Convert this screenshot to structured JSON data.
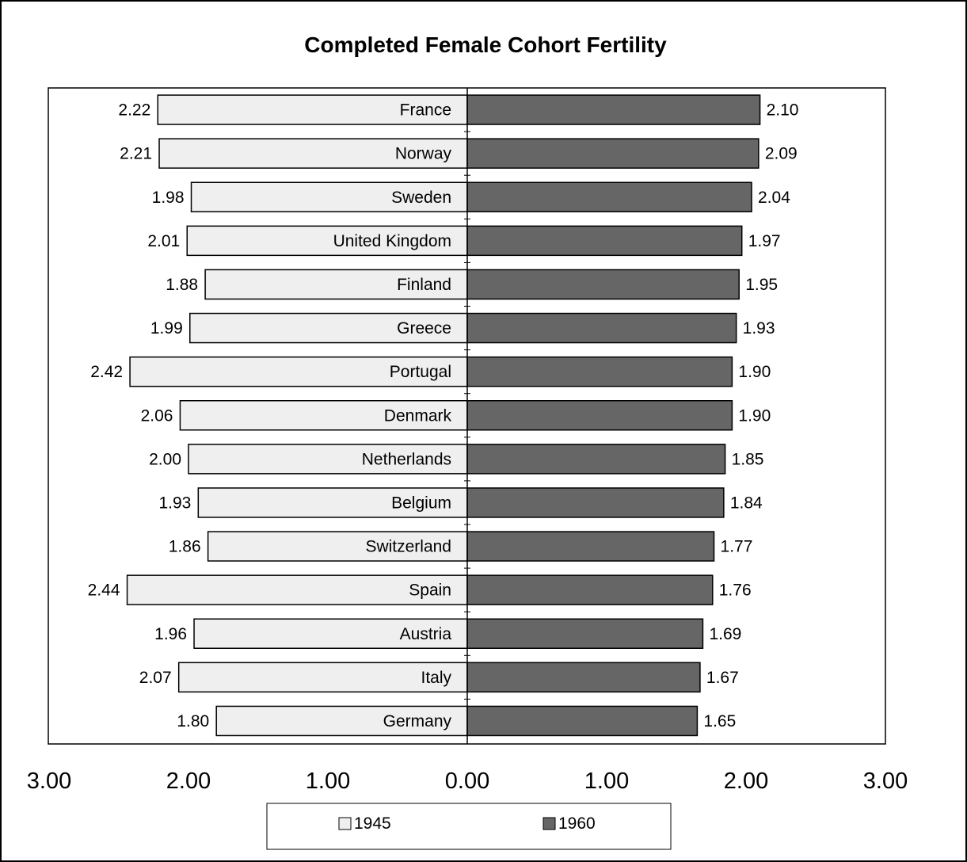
{
  "chart_data": {
    "type": "bar",
    "title": "Completed Female Cohort Fertility",
    "categories": [
      "France",
      "Norway",
      "Sweden",
      "United Kingdom",
      "Finland",
      "Greece",
      "Portugal",
      "Denmark",
      "Netherlands",
      "Belgium",
      "Switzerland",
      "Spain",
      "Austria",
      "Italy",
      "Germany"
    ],
    "series": [
      {
        "name": "1945",
        "values": [
          2.22,
          2.21,
          1.98,
          2.01,
          1.88,
          1.99,
          2.42,
          2.06,
          2.0,
          1.93,
          1.86,
          2.44,
          1.96,
          2.07,
          1.8
        ],
        "labels": [
          "2.22",
          "2.21",
          "1.98",
          "2.01",
          "1.88",
          "1.99",
          "2.42",
          "2.06",
          "2.00",
          "1.93",
          "1.86",
          "2.44",
          "1.96",
          "2.07",
          "1.80"
        ],
        "color": "#efefef",
        "side": "left"
      },
      {
        "name": "1960",
        "values": [
          2.1,
          2.09,
          2.04,
          1.97,
          1.95,
          1.93,
          1.9,
          1.9,
          1.85,
          1.84,
          1.77,
          1.76,
          1.69,
          1.67,
          1.65
        ],
        "labels": [
          "2.10",
          "2.09",
          "2.04",
          "1.97",
          "1.95",
          "1.93",
          "1.90",
          "1.90",
          "1.85",
          "1.84",
          "1.77",
          "1.76",
          "1.69",
          "1.67",
          "1.65"
        ],
        "color": "#666666",
        "side": "right"
      }
    ],
    "xlim": [
      -3,
      3
    ],
    "x_ticks": [
      "3.00",
      "2.00",
      "1.00",
      "0.00",
      "1.00",
      "2.00",
      "3.00"
    ],
    "legend_position": "bottom",
    "grid": false
  }
}
